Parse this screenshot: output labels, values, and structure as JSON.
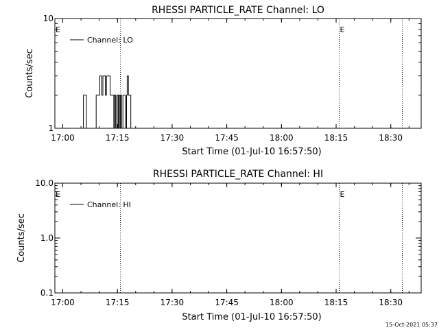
{
  "footer": {
    "timestamp": "15-Oct-2021 05:37"
  },
  "chart_data": [
    {
      "type": "line",
      "title": "RHESSI PARTICLE_RATE Channel: LO",
      "xlabel": "Start Time (01-Jul-10 16:57:50)",
      "ylabel": "Counts/sec",
      "yscale": "log",
      "ylim": [
        1,
        10
      ],
      "ytick_values": [
        1,
        10
      ],
      "ytick_labels": [
        "1",
        "10"
      ],
      "xlim": [
        "16:57:50",
        "18:38:20"
      ],
      "xticks": [
        "17:00",
        "17:15",
        "17:30",
        "17:45",
        "18:00",
        "18:15",
        "18:30"
      ],
      "markers": [
        {
          "label": "E",
          "time": "16:57:50"
        },
        {
          "label": "",
          "time": "17:15:50"
        },
        {
          "label": "E",
          "time": "18:15:50"
        },
        {
          "label": "",
          "time": "18:33:10"
        }
      ],
      "legend_position": "top-left",
      "series": [
        {
          "name": "Channel: LO",
          "x": [
            "17:05:00",
            "17:05:30",
            "17:05:40",
            "17:06:10",
            "17:06:30",
            "17:08:40",
            "17:09:10",
            "17:09:30",
            "17:09:50",
            "17:10:10",
            "17:10:30",
            "17:10:40",
            "17:11:00",
            "17:11:20",
            "17:11:40",
            "17:12:00",
            "17:12:20",
            "17:12:40",
            "17:13:00",
            "17:13:20",
            "17:13:40",
            "17:14:00",
            "17:14:10",
            "17:14:30",
            "17:14:50",
            "17:15:10",
            "17:15:20",
            "17:15:40",
            "17:15:50",
            "17:16:10",
            "17:16:30",
            "17:16:50",
            "17:17:10",
            "17:17:30",
            "17:17:40",
            "17:18:00",
            "17:18:20",
            "17:18:40",
            "17:19:00",
            "17:19:20"
          ],
          "y": [
            1,
            1,
            2,
            2,
            1,
            1,
            2,
            2,
            2,
            3,
            3,
            2,
            3,
            3,
            2,
            3,
            3,
            3,
            2,
            2,
            2,
            1,
            2,
            1,
            2,
            1,
            2,
            1,
            2,
            1,
            2,
            2,
            1,
            2,
            3,
            2,
            2,
            1,
            1,
            1
          ]
        }
      ]
    },
    {
      "type": "line",
      "title": "RHESSI PARTICLE_RATE Channel: HI",
      "xlabel": "Start Time (01-Jul-10 16:57:50)",
      "ylabel": "Counts/sec",
      "yscale": "log",
      "ylim": [
        0.1,
        10
      ],
      "ytick_values": [
        0.1,
        1,
        10
      ],
      "ytick_labels": [
        "0.1",
        "1.0",
        "10.0"
      ],
      "xlim": [
        "16:57:50",
        "18:38:20"
      ],
      "xticks": [
        "17:00",
        "17:15",
        "17:30",
        "17:45",
        "18:00",
        "18:15",
        "18:30"
      ],
      "markers": [
        {
          "label": "E",
          "time": "16:57:50"
        },
        {
          "label": "",
          "time": "17:15:50"
        },
        {
          "label": "E",
          "time": "18:15:50"
        },
        {
          "label": "",
          "time": "18:33:10"
        }
      ],
      "legend_position": "top-left",
      "series": [
        {
          "name": "Channel: HI",
          "x": [],
          "y": []
        }
      ]
    }
  ]
}
